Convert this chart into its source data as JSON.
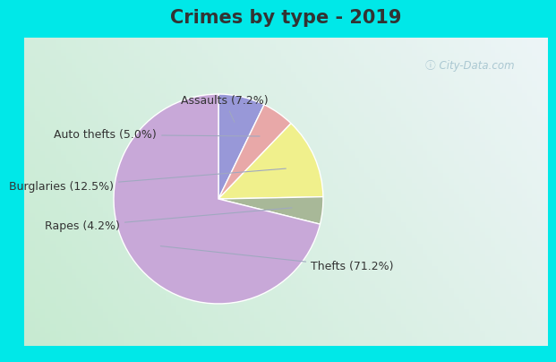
{
  "title": "Crimes by type - 2019",
  "wedge_order": [
    "Assaults",
    "Auto thefts",
    "Burglaries",
    "Rapes",
    "Thefts"
  ],
  "values": [
    7.2,
    5.0,
    12.5,
    4.2,
    71.2
  ],
  "colors": [
    "#9898d8",
    "#e8a8a8",
    "#f0f08c",
    "#a8b898",
    "#c8a8d8"
  ],
  "label_texts": {
    "Assaults": "Assaults (7.2%)",
    "Auto thefts": "Auto thefts (5.0%)",
    "Burglaries": "Burglaries (12.5%)",
    "Rapes": "Rapes (4.2%)",
    "Thefts": "Thefts (71.2%)"
  },
  "cyan_color": "#00e8e8",
  "inner_bg_left": "#c8e8d0",
  "inner_bg_right": "#e8f0f0",
  "title_fontsize": 15,
  "label_fontsize": 9,
  "title_color": "#333333",
  "label_color": "#333333",
  "watermark_color": "#a0c0cc"
}
